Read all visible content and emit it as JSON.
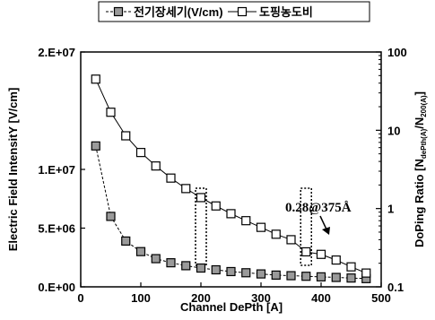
{
  "chart_data": {
    "type": "line",
    "xlabel": "Channel DePth [A]",
    "ylabel_left": "Electric Field IntensitY [V/cm]",
    "ylabel_right_main": "DoPing Ratio [N",
    "ylabel_right_sub1": "dePth(A)",
    "ylabel_right_mid": "/N",
    "ylabel_right_sub2": "200(A)",
    "ylabel_right_end": "]",
    "xlim": [
      0,
      500
    ],
    "x_ticks": [
      "0",
      "100",
      "200",
      "300",
      "400",
      "500"
    ],
    "ylim_left": [
      0,
      20000000
    ],
    "y_left_ticks": [
      "0.E+00",
      "5.E+06",
      "1.E+07",
      "2.E+07"
    ],
    "y_left_tick_values": [
      0,
      5000000,
      10000000,
      20000000
    ],
    "ylim_right": [
      0.1,
      100
    ],
    "y_right_scale": "log",
    "y_right_ticks": [
      "0.1",
      "1",
      "10",
      "100"
    ],
    "grid": false,
    "legend_position": "top",
    "series": [
      {
        "name": "전기장세기(V/cm)",
        "axis": "left",
        "marker": "filled-square",
        "x": [
          25,
          50,
          75,
          100,
          125,
          150,
          175,
          200,
          225,
          250,
          275,
          300,
          325,
          350,
          375,
          400,
          425,
          450,
          475
        ],
        "values": [
          12000000,
          6000000,
          3900000,
          3000000,
          2400000,
          2050000,
          1800000,
          1600000,
          1450000,
          1300000,
          1200000,
          1100000,
          1000000,
          950000,
          900000,
          850000,
          800000,
          750000,
          700000
        ]
      },
      {
        "name": "도핑농도비",
        "axis": "right",
        "marker": "open-square",
        "x": [
          25,
          50,
          75,
          100,
          125,
          150,
          175,
          200,
          225,
          250,
          275,
          300,
          325,
          350,
          375,
          400,
          425,
          450,
          475
        ],
        "values": [
          45,
          17,
          8.5,
          5.2,
          3.5,
          2.45,
          1.8,
          1.38,
          1.08,
          0.86,
          0.7,
          0.575,
          0.47,
          0.4,
          0.28,
          0.26,
          0.22,
          0.18,
          0.15
        ]
      }
    ],
    "annotation": "0.28@375Å",
    "highlight_x": [
      200,
      375
    ]
  }
}
